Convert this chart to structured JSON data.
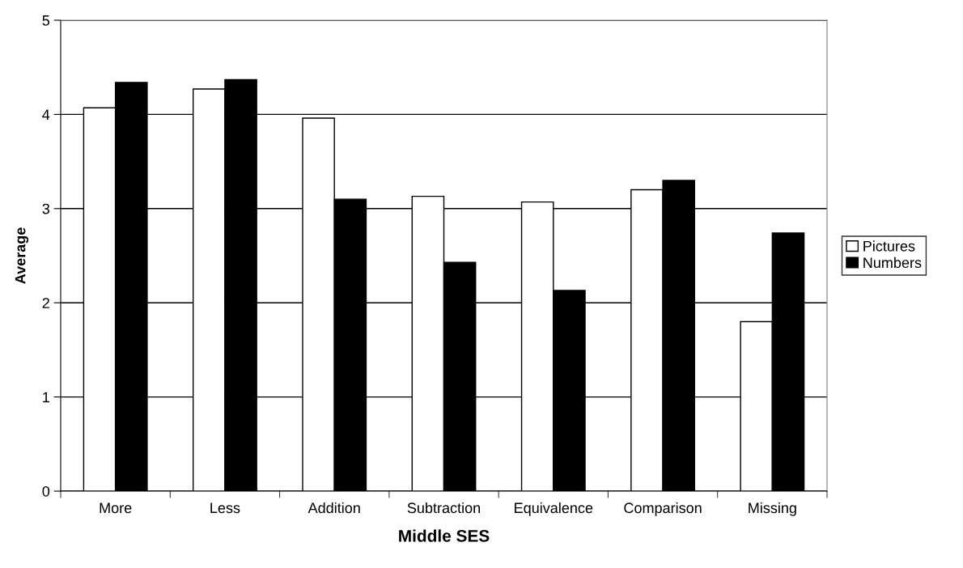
{
  "chart_data": {
    "type": "bar",
    "xlabel": "Middle SES",
    "ylabel": "Average",
    "categories": [
      "More",
      "Less",
      "Addition",
      "Subtraction",
      "Equivalence",
      "Comparison",
      "Missing"
    ],
    "series": [
      {
        "name": "Pictures",
        "color": "#ffffff",
        "values": [
          4.07,
          4.27,
          3.96,
          3.13,
          3.07,
          3.2,
          1.8
        ]
      },
      {
        "name": "Numbers",
        "color": "#000000",
        "values": [
          4.34,
          4.37,
          3.1,
          2.43,
          2.13,
          3.3,
          2.74
        ]
      }
    ],
    "ylim": [
      0,
      5
    ],
    "yticks": [
      0,
      1,
      2,
      3,
      4,
      5
    ],
    "grid": "y",
    "legend": "right"
  }
}
